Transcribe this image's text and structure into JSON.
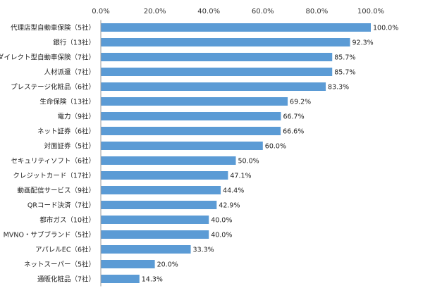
{
  "chart_data": {
    "type": "bar",
    "orientation": "horizontal",
    "title": "",
    "xlabel": "",
    "ylabel": "",
    "xlim": [
      0,
      100
    ],
    "x_ticks": [
      "0.0%",
      "20.0%",
      "40.0%",
      "60.0%",
      "80.0%",
      "100.0%"
    ],
    "grid": false,
    "bar_color": "#5b9bd5",
    "categories": [
      "代理店型自動車保険（5社）",
      "銀行（13社）",
      "ダイレクト型自動車保険（7社）",
      "人材派遣（7社）",
      "プレステージ化粧品（6社）",
      "生命保険（13社）",
      "電力（9社）",
      "ネット証券（6社）",
      "対面証券（5社）",
      "セキュリティソフト（6社）",
      "クレジットカード（17社）",
      "動画配信サービス（9社）",
      "QRコード決済（7社）",
      "都市ガス（10社）",
      "MVNO・サブブランド（5社）",
      "アパレルEC（6社）",
      "ネットスーパー（5社）",
      "通販化粧品（7社）"
    ],
    "values": [
      100.0,
      92.3,
      85.7,
      85.7,
      83.3,
      69.2,
      66.7,
      66.6,
      60.0,
      50.0,
      47.1,
      44.4,
      42.9,
      40.0,
      40.0,
      33.3,
      20.0,
      14.3
    ],
    "value_labels": [
      "100.0%",
      "92.3%",
      "85.7%",
      "85.7%",
      "83.3%",
      "69.2%",
      "66.7%",
      "66.6%",
      "60.0%",
      "50.0%",
      "47.1%",
      "44.4%",
      "42.9%",
      "40.0%",
      "40.0%",
      "33.3%",
      "20.0%",
      "14.3%"
    ]
  }
}
